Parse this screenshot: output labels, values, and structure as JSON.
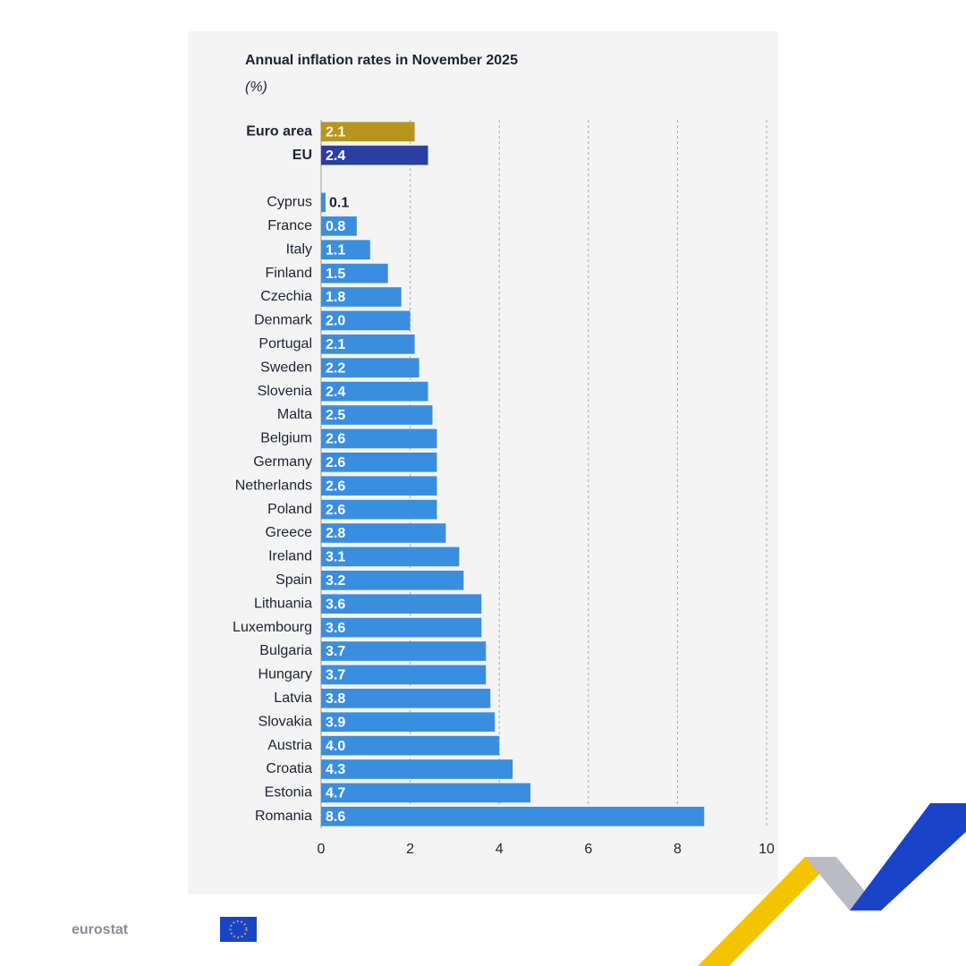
{
  "brand": "eurostat",
  "chart_data": {
    "type": "barh",
    "title": "Annual inflation rates in November 2025",
    "subtitle": "(%)",
    "categories": [
      "Euro area",
      "EU",
      "Cyprus",
      "France",
      "Italy",
      "Finland",
      "Czechia",
      "Denmark",
      "Portugal",
      "Sweden",
      "Slovenia",
      "Malta",
      "Belgium",
      "Germany",
      "Netherlands",
      "Poland",
      "Greece",
      "Ireland",
      "Spain",
      "Lithuania",
      "Luxembourg",
      "Bulgaria",
      "Hungary",
      "Latvia",
      "Slovakia",
      "Austria",
      "Croatia",
      "Estonia",
      "Romania"
    ],
    "values": [
      2.1,
      2.4,
      0.1,
      0.8,
      1.1,
      1.5,
      1.8,
      2.0,
      2.1,
      2.2,
      2.4,
      2.5,
      2.6,
      2.6,
      2.6,
      2.6,
      2.8,
      3.1,
      3.2,
      3.6,
      3.6,
      3.7,
      3.7,
      3.8,
      3.9,
      4.0,
      4.3,
      4.7,
      8.6
    ],
    "value_labels": [
      "2.1",
      "2.4",
      "0.1",
      "0.8",
      "1.1",
      "1.5",
      "1.8",
      "2.0",
      "2.1",
      "2.2",
      "2.4",
      "2.5",
      "2.6",
      "2.6",
      "2.6",
      "2.6",
      "2.8",
      "3.1",
      "3.2",
      "3.6",
      "3.6",
      "3.7",
      "3.7",
      "3.8",
      "3.9",
      "4.0",
      "4.3",
      "4.7",
      "8.6"
    ],
    "colors": [
      "#b8961e",
      "#2a3f9e",
      "#3a8ee0",
      "#3a8ee0",
      "#3a8ee0",
      "#3a8ee0",
      "#3a8ee0",
      "#3a8ee0",
      "#3a8ee0",
      "#3a8ee0",
      "#3a8ee0",
      "#3a8ee0",
      "#3a8ee0",
      "#3a8ee0",
      "#3a8ee0",
      "#3a8ee0",
      "#3a8ee0",
      "#3a8ee0",
      "#3a8ee0",
      "#3a8ee0",
      "#3a8ee0",
      "#3a8ee0",
      "#3a8ee0",
      "#3a8ee0",
      "#3a8ee0",
      "#3a8ee0",
      "#3a8ee0",
      "#3a8ee0",
      "#3a8ee0"
    ],
    "xlim": [
      0,
      10
    ],
    "xticks": [
      0,
      2,
      4,
      6,
      8,
      10
    ],
    "grid": true
  }
}
